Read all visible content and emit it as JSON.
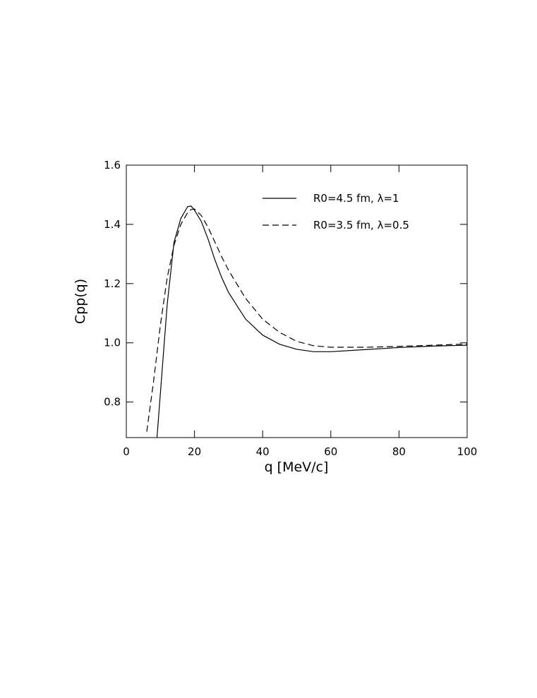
{
  "chart_data": {
    "type": "line",
    "xlabel": "q [MeV/c]",
    "ylabel": "Cpp(q)",
    "x": [
      6,
      8,
      9,
      10,
      12,
      14,
      16,
      18,
      19,
      20,
      22,
      24,
      26,
      28,
      30,
      35,
      40,
      45,
      50,
      55,
      60,
      70,
      80,
      90,
      100
    ],
    "series": [
      {
        "name": "R0=4.5 fm, λ=1",
        "color": "#000000",
        "dash": "solid",
        "values": [
          null,
          null,
          0.68,
          0.83,
          1.13,
          1.34,
          1.42,
          1.46,
          1.462,
          1.448,
          1.41,
          1.35,
          1.28,
          1.22,
          1.17,
          1.08,
          1.026,
          0.995,
          0.978,
          0.97,
          0.97,
          0.977,
          0.984,
          0.989,
          0.992
        ]
      },
      {
        "name": "R0=3.5 fm, λ=0.5",
        "color": "#000000",
        "dash": "dashed",
        "values": [
          0.7,
          0.87,
          0.965,
          1.06,
          1.22,
          1.33,
          1.4,
          1.44,
          1.45,
          1.452,
          1.43,
          1.39,
          1.34,
          1.29,
          1.245,
          1.15,
          1.08,
          1.035,
          1.005,
          0.99,
          0.985,
          0.985,
          0.988,
          0.992,
          0.996
        ]
      }
    ],
    "xlim": [
      0,
      100
    ],
    "xticks": [
      0,
      20,
      40,
      60,
      80,
      100
    ],
    "ylim": [
      0.68,
      1.6
    ],
    "yticks": [
      0.8,
      {
        "value": 1.0,
        "label": "1.0"
      },
      1.2,
      1.4,
      1.6
    ],
    "legend": "top-right",
    "grid": false
  }
}
